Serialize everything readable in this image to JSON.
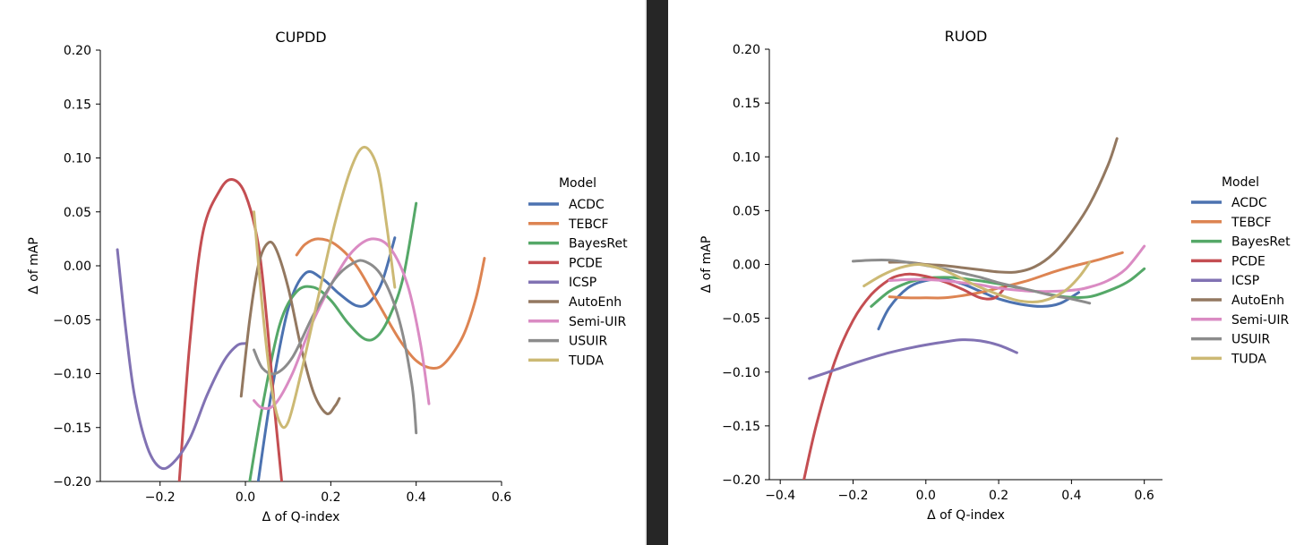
{
  "legend_title": "Model",
  "models": [
    {
      "name": "ACDC",
      "color": "#4c72b0"
    },
    {
      "name": "TEBCF",
      "color": "#dd8452"
    },
    {
      "name": "BayesRet",
      "color": "#55a868"
    },
    {
      "name": "PCDE",
      "color": "#c44e52"
    },
    {
      "name": "ICSP",
      "color": "#8172b3"
    },
    {
      "name": "AutoEnh",
      "color": "#937860"
    },
    {
      "name": "Semi-UIR",
      "color": "#da8bc3"
    },
    {
      "name": "USUIR",
      "color": "#8c8c8c"
    },
    {
      "name": "TUDA",
      "color": "#ccb974"
    }
  ],
  "chart_data": [
    {
      "type": "line",
      "title": "CUPDD",
      "xlabel": "Δ of Q-index",
      "ylabel": "Δ of mAP",
      "xlim": [
        -0.34,
        0.6
      ],
      "ylim": [
        -0.2,
        0.2
      ],
      "xticks": [
        -0.2,
        0.0,
        0.2,
        0.4,
        0.6
      ],
      "xtick_labels": [
        "−0.2",
        "0.0",
        "0.2",
        "0.4",
        "0.6"
      ],
      "yticks": [
        -0.2,
        -0.15,
        -0.1,
        -0.05,
        0.0,
        0.05,
        0.1,
        0.15,
        0.2
      ],
      "ytick_labels": [
        "−0.20",
        "−0.15",
        "−0.10",
        "−0.05",
        "0.00",
        "0.05",
        "0.10",
        "0.15",
        "0.20"
      ],
      "grid": false,
      "legend": "outside-right",
      "series": [
        {
          "name": "ACDC",
          "points": [
            [
              0.03,
              -0.2
            ],
            [
              0.06,
              -0.12
            ],
            [
              0.1,
              -0.04
            ],
            [
              0.14,
              -0.007
            ],
            [
              0.18,
              -0.012
            ],
            [
              0.22,
              -0.026
            ],
            [
              0.26,
              -0.037
            ],
            [
              0.29,
              -0.034
            ],
            [
              0.32,
              -0.015
            ],
            [
              0.35,
              0.026
            ]
          ]
        },
        {
          "name": "TEBCF",
          "points": [
            [
              0.12,
              0.01
            ],
            [
              0.14,
              0.02
            ],
            [
              0.17,
              0.025
            ],
            [
              0.21,
              0.02
            ],
            [
              0.26,
              0.0
            ],
            [
              0.31,
              -0.034
            ],
            [
              0.36,
              -0.068
            ],
            [
              0.4,
              -0.088
            ],
            [
              0.44,
              -0.095
            ],
            [
              0.47,
              -0.089
            ],
            [
              0.51,
              -0.065
            ],
            [
              0.54,
              -0.03
            ],
            [
              0.56,
              0.007
            ]
          ]
        },
        {
          "name": "BayesRet",
          "points": [
            [
              0.01,
              -0.2
            ],
            [
              0.04,
              -0.13
            ],
            [
              0.08,
              -0.055
            ],
            [
              0.12,
              -0.024
            ],
            [
              0.16,
              -0.02
            ],
            [
              0.2,
              -0.032
            ],
            [
              0.24,
              -0.053
            ],
            [
              0.28,
              -0.068
            ],
            [
              0.31,
              -0.065
            ],
            [
              0.34,
              -0.045
            ],
            [
              0.37,
              -0.01
            ],
            [
              0.4,
              0.058
            ]
          ]
        },
        {
          "name": "PCDE",
          "points": [
            [
              -0.155,
              -0.2
            ],
            [
              -0.13,
              -0.07
            ],
            [
              -0.1,
              0.03
            ],
            [
              -0.06,
              0.07
            ],
            [
              -0.03,
              0.08
            ],
            [
              0.0,
              0.066
            ],
            [
              0.03,
              0.02
            ],
            [
              0.05,
              -0.05
            ],
            [
              0.07,
              -0.14
            ],
            [
              0.085,
              -0.2
            ]
          ]
        },
        {
          "name": "ICSP",
          "points": [
            [
              -0.3,
              0.015
            ],
            [
              -0.28,
              -0.06
            ],
            [
              -0.26,
              -0.12
            ],
            [
              -0.23,
              -0.168
            ],
            [
              -0.2,
              -0.187
            ],
            [
              -0.17,
              -0.183
            ],
            [
              -0.13,
              -0.16
            ],
            [
              -0.09,
              -0.12
            ],
            [
              -0.05,
              -0.088
            ],
            [
              -0.02,
              -0.074
            ],
            [
              0.0,
              -0.072
            ]
          ]
        },
        {
          "name": "AutoEnh",
          "points": [
            [
              -0.01,
              -0.121
            ],
            [
              0.01,
              -0.05
            ],
            [
              0.03,
              0.0
            ],
            [
              0.05,
              0.02
            ],
            [
              0.07,
              0.017
            ],
            [
              0.1,
              -0.02
            ],
            [
              0.13,
              -0.075
            ],
            [
              0.16,
              -0.118
            ],
            [
              0.19,
              -0.137
            ],
            [
              0.21,
              -0.13
            ],
            [
              0.22,
              -0.123
            ]
          ]
        },
        {
          "name": "Semi-UIR",
          "points": [
            [
              0.02,
              -0.125
            ],
            [
              0.04,
              -0.132
            ],
            [
              0.07,
              -0.128
            ],
            [
              0.11,
              -0.1
            ],
            [
              0.16,
              -0.05
            ],
            [
              0.22,
              -0.004
            ],
            [
              0.26,
              0.017
            ],
            [
              0.3,
              0.025
            ],
            [
              0.34,
              0.016
            ],
            [
              0.38,
              -0.018
            ],
            [
              0.41,
              -0.072
            ],
            [
              0.43,
              -0.128
            ]
          ]
        },
        {
          "name": "USUIR",
          "points": [
            [
              0.02,
              -0.078
            ],
            [
              0.04,
              -0.095
            ],
            [
              0.07,
              -0.1
            ],
            [
              0.11,
              -0.085
            ],
            [
              0.16,
              -0.045
            ],
            [
              0.21,
              -0.012
            ],
            [
              0.25,
              0.002
            ],
            [
              0.28,
              0.004
            ],
            [
              0.32,
              -0.01
            ],
            [
              0.36,
              -0.05
            ],
            [
              0.39,
              -0.11
            ],
            [
              0.4,
              -0.155
            ]
          ]
        },
        {
          "name": "TUDA",
          "points": [
            [
              0.02,
              0.05
            ],
            [
              0.04,
              -0.04
            ],
            [
              0.06,
              -0.11
            ],
            [
              0.08,
              -0.145
            ],
            [
              0.1,
              -0.145
            ],
            [
              0.13,
              -0.1
            ],
            [
              0.17,
              -0.03
            ],
            [
              0.21,
              0.04
            ],
            [
              0.25,
              0.093
            ],
            [
              0.28,
              0.11
            ],
            [
              0.31,
              0.09
            ],
            [
              0.33,
              0.04
            ],
            [
              0.35,
              -0.02
            ]
          ]
        }
      ]
    },
    {
      "type": "line",
      "title": "RUOD",
      "xlabel": "Δ of Q-index",
      "ylabel": "Δ of mAP",
      "xlim": [
        -0.43,
        0.65
      ],
      "ylim": [
        -0.2,
        0.2
      ],
      "xticks": [
        -0.4,
        -0.2,
        0.0,
        0.2,
        0.4,
        0.6
      ],
      "xtick_labels": [
        "−0.4",
        "−0.2",
        "0.0",
        "0.2",
        "0.4",
        "0.6"
      ],
      "yticks": [
        -0.2,
        -0.15,
        -0.1,
        -0.05,
        0.0,
        0.05,
        0.1,
        0.15,
        0.2
      ],
      "ytick_labels": [
        "−0.20",
        "−0.15",
        "−0.10",
        "−0.05",
        "0.00",
        "0.05",
        "0.10",
        "0.15",
        "0.20"
      ],
      "grid": false,
      "legend": "outside-right",
      "series": [
        {
          "name": "ACDC",
          "points": [
            [
              -0.13,
              -0.06
            ],
            [
              -0.1,
              -0.04
            ],
            [
              -0.05,
              -0.022
            ],
            [
              0.0,
              -0.015
            ],
            [
              0.05,
              -0.014
            ],
            [
              0.1,
              -0.018
            ],
            [
              0.15,
              -0.025
            ],
            [
              0.2,
              -0.032
            ],
            [
              0.26,
              -0.037
            ],
            [
              0.32,
              -0.039
            ],
            [
              0.37,
              -0.036
            ],
            [
              0.42,
              -0.026
            ]
          ]
        },
        {
          "name": "TEBCF",
          "points": [
            [
              -0.1,
              -0.03
            ],
            [
              -0.05,
              -0.031
            ],
            [
              0.0,
              -0.031
            ],
            [
              0.05,
              -0.031
            ],
            [
              0.1,
              -0.029
            ],
            [
              0.15,
              -0.026
            ],
            [
              0.2,
              -0.022
            ],
            [
              0.28,
              -0.015
            ],
            [
              0.35,
              -0.007
            ],
            [
              0.4,
              -0.002
            ],
            [
              0.47,
              0.004
            ],
            [
              0.54,
              0.011
            ]
          ]
        },
        {
          "name": "BayesRet",
          "points": [
            [
              -0.15,
              -0.039
            ],
            [
              -0.1,
              -0.025
            ],
            [
              -0.05,
              -0.017
            ],
            [
              0.0,
              -0.013
            ],
            [
              0.05,
              -0.012
            ],
            [
              0.1,
              -0.013
            ],
            [
              0.2,
              -0.018
            ],
            [
              0.3,
              -0.025
            ],
            [
              0.38,
              -0.03
            ],
            [
              0.45,
              -0.03
            ],
            [
              0.52,
              -0.022
            ],
            [
              0.56,
              -0.015
            ],
            [
              0.6,
              -0.004
            ]
          ]
        },
        {
          "name": "PCDE",
          "points": [
            [
              -0.335,
              -0.2
            ],
            [
              -0.3,
              -0.148
            ],
            [
              -0.25,
              -0.09
            ],
            [
              -0.2,
              -0.052
            ],
            [
              -0.15,
              -0.028
            ],
            [
              -0.1,
              -0.014
            ],
            [
              -0.07,
              -0.01
            ],
            [
              -0.04,
              -0.009
            ],
            [
              0.0,
              -0.011
            ],
            [
              0.05,
              -0.016
            ],
            [
              0.1,
              -0.023
            ],
            [
              0.15,
              -0.031
            ],
            [
              0.19,
              -0.031
            ],
            [
              0.22,
              -0.02
            ]
          ]
        },
        {
          "name": "ICSP",
          "points": [
            [
              -0.32,
              -0.106
            ],
            [
              -0.25,
              -0.098
            ],
            [
              -0.18,
              -0.09
            ],
            [
              -0.1,
              -0.082
            ],
            [
              -0.02,
              -0.076
            ],
            [
              0.05,
              -0.072
            ],
            [
              0.1,
              -0.07
            ],
            [
              0.15,
              -0.071
            ],
            [
              0.2,
              -0.075
            ],
            [
              0.25,
              -0.082
            ]
          ]
        },
        {
          "name": "AutoEnh",
          "points": [
            [
              -0.1,
              0.002
            ],
            [
              -0.05,
              0.002
            ],
            [
              0.0,
              0.0
            ],
            [
              0.05,
              -0.001
            ],
            [
              0.1,
              -0.003
            ],
            [
              0.15,
              -0.005
            ],
            [
              0.2,
              -0.007
            ],
            [
              0.25,
              -0.007
            ],
            [
              0.3,
              -0.002
            ],
            [
              0.35,
              0.01
            ],
            [
              0.4,
              0.03
            ],
            [
              0.45,
              0.056
            ],
            [
              0.5,
              0.092
            ],
            [
              0.525,
              0.117
            ]
          ]
        },
        {
          "name": "Semi-UIR",
          "points": [
            [
              -0.1,
              -0.015
            ],
            [
              -0.05,
              -0.014
            ],
            [
              0.0,
              -0.014
            ],
            [
              0.05,
              -0.015
            ],
            [
              0.1,
              -0.017
            ],
            [
              0.15,
              -0.019
            ],
            [
              0.2,
              -0.022
            ],
            [
              0.3,
              -0.025
            ],
            [
              0.4,
              -0.024
            ],
            [
              0.45,
              -0.021
            ],
            [
              0.5,
              -0.015
            ],
            [
              0.55,
              -0.004
            ],
            [
              0.6,
              0.017
            ]
          ]
        },
        {
          "name": "USUIR",
          "points": [
            [
              -0.2,
              0.003
            ],
            [
              -0.15,
              0.004
            ],
            [
              -0.1,
              0.004
            ],
            [
              -0.05,
              0.002
            ],
            [
              0.0,
              -0.001
            ],
            [
              0.05,
              -0.004
            ],
            [
              0.1,
              -0.008
            ],
            [
              0.15,
              -0.012
            ],
            [
              0.2,
              -0.017
            ],
            [
              0.25,
              -0.021
            ],
            [
              0.3,
              -0.025
            ],
            [
              0.35,
              -0.029
            ],
            [
              0.4,
              -0.032
            ],
            [
              0.45,
              -0.036
            ]
          ]
        },
        {
          "name": "TUDA",
          "points": [
            [
              -0.17,
              -0.02
            ],
            [
              -0.12,
              -0.01
            ],
            [
              -0.07,
              -0.003
            ],
            [
              -0.02,
              0.0
            ],
            [
              0.03,
              -0.003
            ],
            [
              0.08,
              -0.01
            ],
            [
              0.14,
              -0.02
            ],
            [
              0.2,
              -0.028
            ],
            [
              0.26,
              -0.034
            ],
            [
              0.32,
              -0.034
            ],
            [
              0.38,
              -0.025
            ],
            [
              0.42,
              -0.012
            ],
            [
              0.45,
              0.002
            ]
          ]
        }
      ]
    }
  ]
}
